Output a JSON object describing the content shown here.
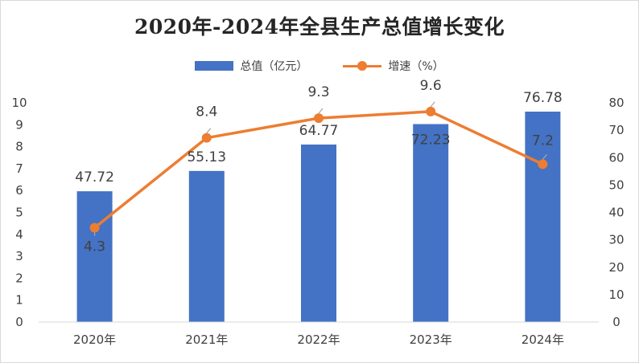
{
  "chart_data": {
    "type": "bar+line",
    "title": "2020年-2024年全县生产总值增长变化",
    "categories": [
      "2020年",
      "2021年",
      "2022年",
      "2023年",
      "2024年"
    ],
    "series": [
      {
        "name": "总值（亿元）",
        "type": "bar",
        "axis": "right",
        "values": [
          47.72,
          55.13,
          64.77,
          72.23,
          76.78
        ],
        "color": "#4472c4"
      },
      {
        "name": "增速（%）",
        "type": "line",
        "axis": "left",
        "values": [
          4.3,
          8.4,
          9.3,
          9.6,
          7.2
        ],
        "color": "#ed7d31"
      }
    ],
    "y_left": {
      "min": 0,
      "max": 10,
      "ticks": [
        "0",
        "1",
        "2",
        "3",
        "4",
        "5",
        "6",
        "7",
        "8",
        "9",
        "10"
      ]
    },
    "y_right": {
      "min": 0,
      "max": 80,
      "ticks": [
        "0",
        "10",
        "20",
        "30",
        "40",
        "50",
        "60",
        "70",
        "80"
      ]
    },
    "legend_position": "top-center",
    "grid": false
  }
}
